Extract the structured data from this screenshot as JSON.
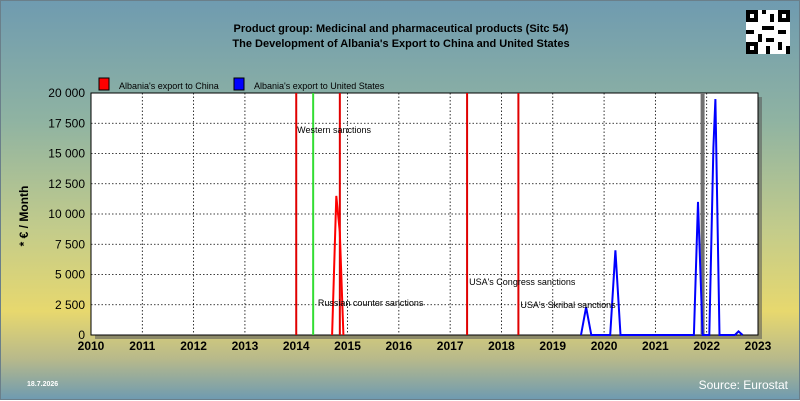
{
  "title_line1": "Product group: Medicinal and pharmaceutical products (Sitc 54)",
  "title_line2": "The Development of Albania's Export to  China and United States",
  "date": "18.7.2026",
  "source": "Source: Eurostat",
  "colors": {
    "china": "#ff0000",
    "us": "#0000ff",
    "sanction": "#e00000",
    "western": "#33dd33",
    "marker": "#707070",
    "grid": "#000000"
  },
  "chart_data": {
    "type": "line",
    "title": "Product group: Medicinal and pharmaceutical products (Sitc 54)\nThe Development of Albania's Export to  China and United States",
    "ylabel": "* € / Month",
    "xlim": [
      2010,
      2023
    ],
    "ylim": [
      0,
      20000
    ],
    "grid": true,
    "legend_placement": "top-left",
    "x_ticks": [
      "2010",
      "2011",
      "2012",
      "2013",
      "2014",
      "2015",
      "2016",
      "2017",
      "2018",
      "2019",
      "2020",
      "2021",
      "2022",
      "2023"
    ],
    "y_ticks": [
      {
        "value": 0,
        "label": "0"
      },
      {
        "value": 2500,
        "label": "2 500"
      },
      {
        "value": 5000,
        "label": "5 000"
      },
      {
        "value": 7500,
        "label": "7 500"
      },
      {
        "value": 10000,
        "label": "10 000"
      },
      {
        "value": 12500,
        "label": "12 500"
      },
      {
        "value": 15000,
        "label": "15 000"
      },
      {
        "value": 17500,
        "label": "17 500"
      },
      {
        "value": 20000,
        "label": "20 000"
      }
    ],
    "series": [
      {
        "name": "Albania's export to China",
        "color": "#ff0000",
        "points": [
          [
            2014.7,
            0
          ],
          [
            2014.78,
            11500
          ],
          [
            2014.85,
            8500
          ],
          [
            2014.92,
            0
          ]
        ]
      },
      {
        "name": "Albania's export to United States",
        "color": "#0000ff",
        "points": [
          [
            2019.55,
            0
          ],
          [
            2019.65,
            2300
          ],
          [
            2019.75,
            0
          ],
          [
            2020.12,
            0
          ],
          [
            2020.22,
            7000
          ],
          [
            2020.32,
            0
          ],
          [
            2021.75,
            0
          ],
          [
            2021.83,
            11000
          ],
          [
            2021.92,
            0
          ],
          [
            2022.05,
            0
          ],
          [
            2022.13,
            15500
          ],
          [
            2022.17,
            19500
          ],
          [
            2022.25,
            0
          ],
          [
            2022.55,
            0
          ],
          [
            2022.62,
            300
          ],
          [
            2022.7,
            0
          ]
        ]
      }
    ],
    "events": [
      {
        "x": 2014.0,
        "label": "",
        "color": "#e00000"
      },
      {
        "x": 2014.33,
        "label": "Western sanctions",
        "color": "#33dd33"
      },
      {
        "x": 2014.85,
        "label": "Russian counter sanctions",
        "color": "#e00000"
      },
      {
        "x": 2017.33,
        "label": "USA's Congress sanctions",
        "color": "#e00000"
      },
      {
        "x": 2018.33,
        "label": "USA's Skribal sanctions",
        "color": "#e00000"
      },
      {
        "x": 2021.92,
        "label": "",
        "color": "#707070"
      }
    ]
  }
}
